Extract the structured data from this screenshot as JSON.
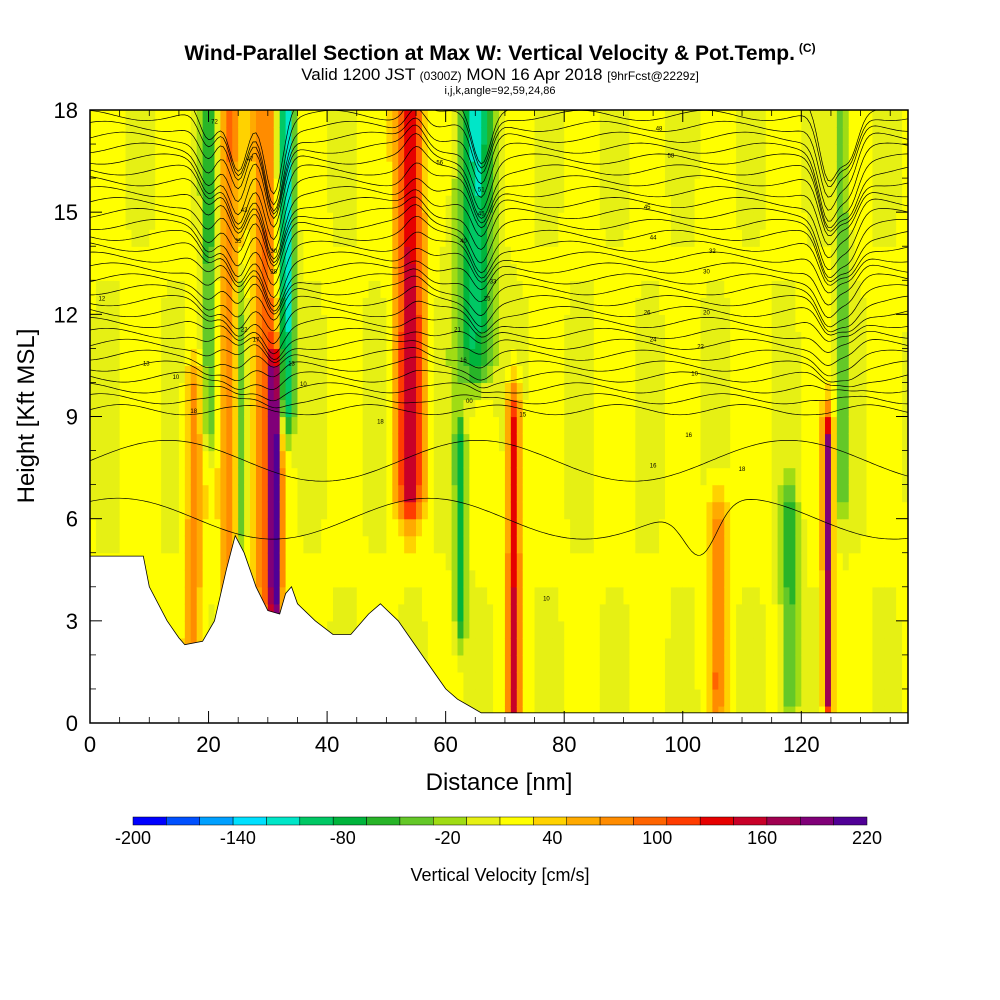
{
  "header": {
    "title": "Wind-Parallel Section at Max W: Vertical Velocity & Pot.Temp.",
    "copyright": "(C)",
    "valid_prefix": "Valid 1200 JST",
    "valid_utc": "(0300Z)",
    "valid_date": "MON 16 Apr 2018",
    "forecast": "[9hrFcst@2229z]",
    "grid_info": "i,j,k,angle=92,59,24,86"
  },
  "chart_data": {
    "type": "heatmap",
    "xlabel": "Distance [nm]",
    "ylabel": "Height [Kft MSL]",
    "xlim": [
      0,
      138
    ],
    "ylim": [
      0,
      18
    ],
    "x_ticks": [
      "0",
      "20",
      "40",
      "60",
      "80",
      "100",
      "120"
    ],
    "x_tick_values": [
      0,
      20,
      40,
      60,
      80,
      100,
      120
    ],
    "y_ticks": [
      "0",
      "3",
      "6",
      "9",
      "12",
      "15",
      "18"
    ],
    "y_tick_values": [
      0,
      3,
      6,
      9,
      12,
      15,
      18
    ],
    "colorbar": {
      "title": "Vertical Velocity [cm/s]",
      "labels": [
        "-200",
        "-140",
        "-80",
        "-20",
        "40",
        "100",
        "160",
        "220"
      ],
      "label_values": [
        -200,
        -140,
        -80,
        -20,
        40,
        100,
        160,
        220
      ],
      "colors": [
        "#0000ff",
        "#0050ff",
        "#00a0ff",
        "#00e0ff",
        "#00e6c8",
        "#00c864",
        "#00b43c",
        "#28b428",
        "#64c828",
        "#a0dc14",
        "#e6f014",
        "#ffff00",
        "#ffd200",
        "#ffaa00",
        "#ff8c00",
        "#ff6400",
        "#ff3c00",
        "#e60000",
        "#c80028",
        "#a00050",
        "#800078",
        "#500096"
      ]
    },
    "updrafts": [
      {
        "x": 17.5,
        "zmin": 2.5,
        "zmax": 9.5,
        "value": 60,
        "width": 1.5
      },
      {
        "x": 23.5,
        "zmin": 3.5,
        "zmax": 18,
        "value": 70,
        "width": 1.5
      },
      {
        "x": 30,
        "zmin": 4,
        "zmax": 18,
        "value": 80,
        "width": 2.5
      },
      {
        "x": 31.2,
        "zmin": 3.5,
        "zmax": 10,
        "value": 160,
        "width": 1.0
      },
      {
        "x": 54,
        "zmin": 7,
        "zmax": 18,
        "value": 140,
        "width": 2.2
      },
      {
        "x": 71.5,
        "zmin": 0.5,
        "zmax": 9,
        "value": 130,
        "width": 1.1
      },
      {
        "x": 106,
        "zmin": 1,
        "zmax": 6,
        "value": 70,
        "width": 1.5
      },
      {
        "x": 124.5,
        "zmin": 1,
        "zmax": 8,
        "value": 170,
        "width": 0.8
      }
    ],
    "downdrafts": [
      {
        "x": 20,
        "zmin": 9,
        "zmax": 18,
        "value": -70,
        "width": 1.2
      },
      {
        "x": 33,
        "zmin": 9.5,
        "zmax": 18,
        "value": -150,
        "width": 1.4
      },
      {
        "x": 25.5,
        "zmin": 3.5,
        "zmax": 12,
        "value": -50,
        "width": 0.8
      },
      {
        "x": 65,
        "zmin": 11,
        "zmax": 18,
        "value": -110,
        "width": 3.0
      },
      {
        "x": 62.5,
        "zmin": 3.5,
        "zmax": 8,
        "value": -90,
        "width": 1.0
      },
      {
        "x": 118,
        "zmin": 1,
        "zmax": 6,
        "value": -70,
        "width": 1.5
      },
      {
        "x": 127,
        "zmin": 7,
        "zmax": 18,
        "value": -60,
        "width": 1.0
      }
    ],
    "terrain_kft": [
      [
        0,
        4.9
      ],
      [
        9,
        4.9
      ],
      [
        10,
        4.0
      ],
      [
        13,
        3.0
      ],
      [
        15,
        2.5
      ],
      [
        16,
        2.3
      ],
      [
        19,
        2.4
      ],
      [
        21,
        3.0
      ],
      [
        23,
        4.5
      ],
      [
        24.5,
        5.5
      ],
      [
        26,
        5.0
      ],
      [
        28,
        4.0
      ],
      [
        30,
        3.3
      ],
      [
        32,
        3.2
      ],
      [
        33,
        3.8
      ],
      [
        34,
        4.0
      ],
      [
        35,
        3.5
      ],
      [
        38,
        3.0
      ],
      [
        41,
        2.6
      ],
      [
        44,
        2.6
      ],
      [
        47,
        3.2
      ],
      [
        49,
        3.5
      ],
      [
        52,
        3.0
      ],
      [
        54,
        2.5
      ],
      [
        56,
        2.0
      ],
      [
        58,
        1.5
      ],
      [
        60,
        1.0
      ],
      [
        62,
        0.7
      ],
      [
        64,
        0.5
      ],
      [
        66,
        0.3
      ],
      [
        138,
        0.3
      ]
    ],
    "contour_labels": [
      {
        "x": 2,
        "y": 12.4,
        "text": "12"
      },
      {
        "x": 9.5,
        "y": 10.5,
        "text": "13"
      },
      {
        "x": 14.5,
        "y": 10.1,
        "text": "10"
      },
      {
        "x": 17.5,
        "y": 9.1,
        "text": "18"
      },
      {
        "x": 21,
        "y": 17.6,
        "text": "72"
      },
      {
        "x": 27,
        "y": 16.5,
        "text": "47"
      },
      {
        "x": 26,
        "y": 15,
        "text": "43"
      },
      {
        "x": 25,
        "y": 14.1,
        "text": "35"
      },
      {
        "x": 31,
        "y": 13.8,
        "text": "30"
      },
      {
        "x": 31,
        "y": 13.2,
        "text": "28"
      },
      {
        "x": 26,
        "y": 11.5,
        "text": "22"
      },
      {
        "x": 28,
        "y": 11.2,
        "text": "17"
      },
      {
        "x": 34,
        "y": 10.5,
        "text": "13"
      },
      {
        "x": 36,
        "y": 9.9,
        "text": "10"
      },
      {
        "x": 49,
        "y": 8.8,
        "text": "18"
      },
      {
        "x": 59,
        "y": 16.4,
        "text": "56"
      },
      {
        "x": 66,
        "y": 15.6,
        "text": "51"
      },
      {
        "x": 66,
        "y": 14.9,
        "text": "45"
      },
      {
        "x": 63,
        "y": 14.1,
        "text": "40"
      },
      {
        "x": 68,
        "y": 12.9,
        "text": "33"
      },
      {
        "x": 67,
        "y": 12.4,
        "text": "25"
      },
      {
        "x": 62,
        "y": 11.5,
        "text": "21"
      },
      {
        "x": 63,
        "y": 10.6,
        "text": "16"
      },
      {
        "x": 64,
        "y": 9.4,
        "text": "00"
      },
      {
        "x": 73,
        "y": 9.0,
        "text": "15"
      },
      {
        "x": 77,
        "y": 3.6,
        "text": "10"
      },
      {
        "x": 96,
        "y": 17.4,
        "text": "48"
      },
      {
        "x": 98,
        "y": 16.6,
        "text": "58"
      },
      {
        "x": 94,
        "y": 15.1,
        "text": "45"
      },
      {
        "x": 95,
        "y": 14.2,
        "text": "44"
      },
      {
        "x": 105,
        "y": 13.8,
        "text": "32"
      },
      {
        "x": 104,
        "y": 13.2,
        "text": "30"
      },
      {
        "x": 94,
        "y": 12,
        "text": "26"
      },
      {
        "x": 104,
        "y": 12.0,
        "text": "20"
      },
      {
        "x": 95,
        "y": 11.2,
        "text": "24"
      },
      {
        "x": 103,
        "y": 11.0,
        "text": "22"
      },
      {
        "x": 102,
        "y": 10.2,
        "text": "10"
      },
      {
        "x": 101,
        "y": 8.4,
        "text": "16"
      },
      {
        "x": 95,
        "y": 7.5,
        "text": "16"
      },
      {
        "x": 110,
        "y": 7.4,
        "text": "18"
      }
    ]
  }
}
